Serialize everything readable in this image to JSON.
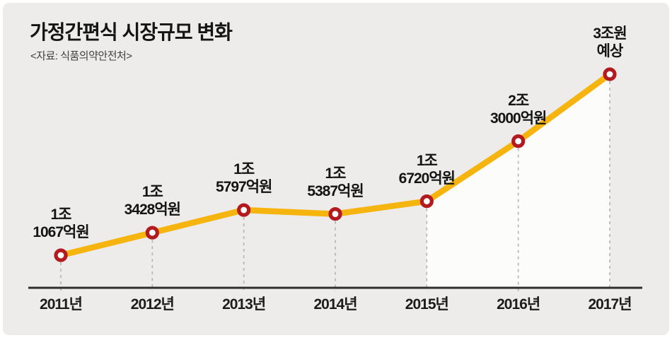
{
  "title": "가정간편식 시장규모 변화",
  "source": "<자료: 식품의약안전처>",
  "colors": {
    "background": "#edecea",
    "highlight_area": "#fcfcfb",
    "line": "#f5b40e",
    "marker_ring": "#b21a20",
    "marker_fill": "#ffffff",
    "dashed_guide": "#b3b2b0",
    "axis": "#2e2e2e",
    "text": "#141414"
  },
  "chart_data": {
    "type": "line",
    "title": "가정간편식 시장규모 변화",
    "source_caption": "<자료: 식품의약안전처>",
    "x": [
      "2011년",
      "2012년",
      "2013년",
      "2014년",
      "2015년",
      "2016년",
      "2017년"
    ],
    "values": [
      11067,
      13428,
      15797,
      15387,
      16720,
      23000,
      30000
    ],
    "unit": "억원",
    "point_labels": [
      "1조\n1067억원",
      "1조\n3428억원",
      "1조\n5797억원",
      "1조\n5387억원",
      "1조\n6720억원",
      "2조\n3000억원",
      "3조원\n예상"
    ],
    "highlight_range_indices": [
      4,
      6
    ],
    "highlight_note": "area under curve from 2015 to 2017 shaded white (projection emphasis)",
    "legend": "none",
    "grid": "dashed vertical guide from each point to x-axis",
    "y_axis": "hidden (values shown as point labels)"
  }
}
